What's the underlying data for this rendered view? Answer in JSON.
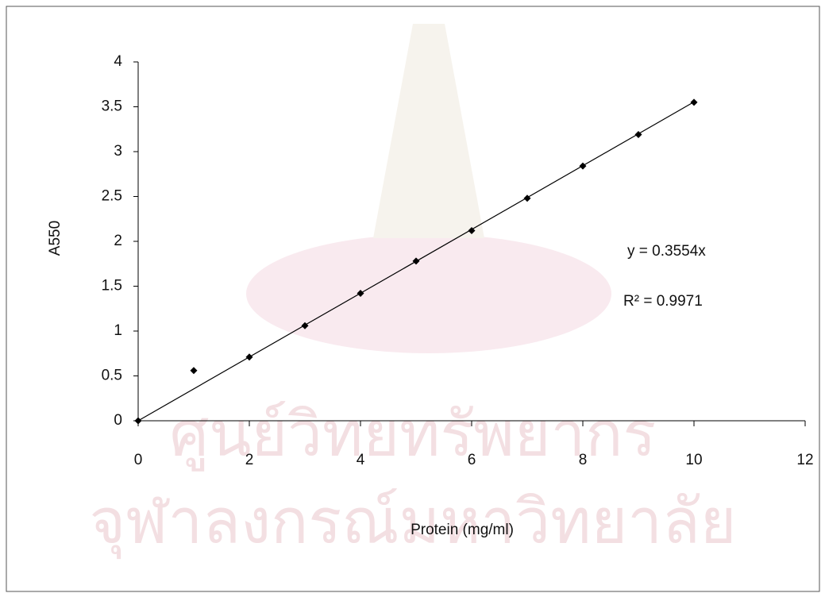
{
  "chart_data": {
    "type": "scatter",
    "x_label": "Protein (mg/ml)",
    "y_label": "A550",
    "x": [
      0,
      1,
      2,
      3,
      4,
      5,
      6,
      7,
      8,
      9,
      10
    ],
    "series": [
      {
        "color": "#000000",
        "values": [
          0,
          0.56,
          0.71,
          1.06,
          1.42,
          1.78,
          2.12,
          2.48,
          2.84,
          3.19,
          3.55
        ]
      }
    ],
    "trendline": {
      "slope": 0.3554,
      "equation": "y = 0.3554x",
      "r_squared": "R² = 0.9971"
    },
    "xlim": [
      0,
      12
    ],
    "xticks": [
      0,
      2,
      4,
      6,
      8,
      10,
      12
    ],
    "ylim": [
      0,
      4
    ],
    "yticks": [
      0,
      0.5,
      1,
      1.5,
      2,
      2.5,
      3,
      3.5,
      4
    ],
    "grid": false,
    "watermark": [
      "ศูนย์วิทยทรัพยากร",
      "จุฬาลงกรณ์มหาวิทยาลัย"
    ]
  }
}
